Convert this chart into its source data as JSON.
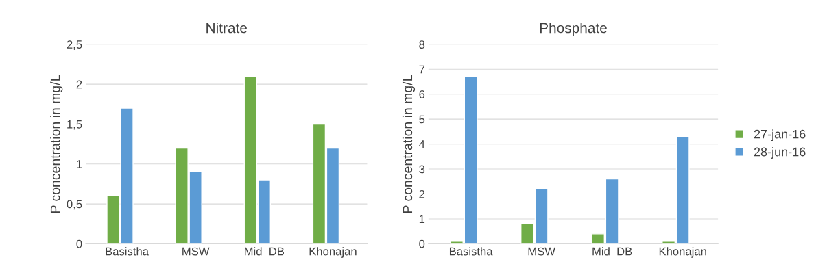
{
  "chart_data": [
    {
      "type": "bar",
      "title": "Nitrate",
      "ylabel": "P concentration in mg/L",
      "categories": [
        "Basistha",
        "MSW",
        "Mid  DB",
        "Khonajan"
      ],
      "series": [
        {
          "color": "#70ad47",
          "values": [
            0.6,
            1.2,
            2.1,
            1.5
          ]
        },
        {
          "color": "#5b9bd5",
          "values": [
            1.7,
            0.9,
            0.8,
            1.2
          ]
        }
      ],
      "ylim": [
        0,
        2.5
      ],
      "yticks": [
        0,
        {
          "value": 0.5,
          "label": "0,5"
        },
        1,
        {
          "value": 1.5,
          "label": "1,5"
        },
        2,
        {
          "value": 2.5,
          "label": "2,5"
        }
      ],
      "grid": "y"
    },
    {
      "type": "bar",
      "title": "Phosphate",
      "ylabel": "P concentration in mg/L",
      "categories": [
        "Basistha",
        "MSW",
        "Mid  DB",
        "Khonajan"
      ],
      "series": [
        {
          "name": "27-jan-16",
          "color": "#70ad47",
          "values": [
            0.1,
            0.8,
            0.4,
            0.1
          ]
        },
        {
          "name": "28-jun-16",
          "color": "#5b9bd5",
          "values": [
            6.7,
            2.2,
            2.6,
            4.3
          ]
        }
      ],
      "ylim": [
        0,
        8
      ],
      "yticks": [
        0,
        1,
        2,
        3,
        4,
        5,
        6,
        7,
        8
      ],
      "grid": "y",
      "legend": "right"
    }
  ]
}
